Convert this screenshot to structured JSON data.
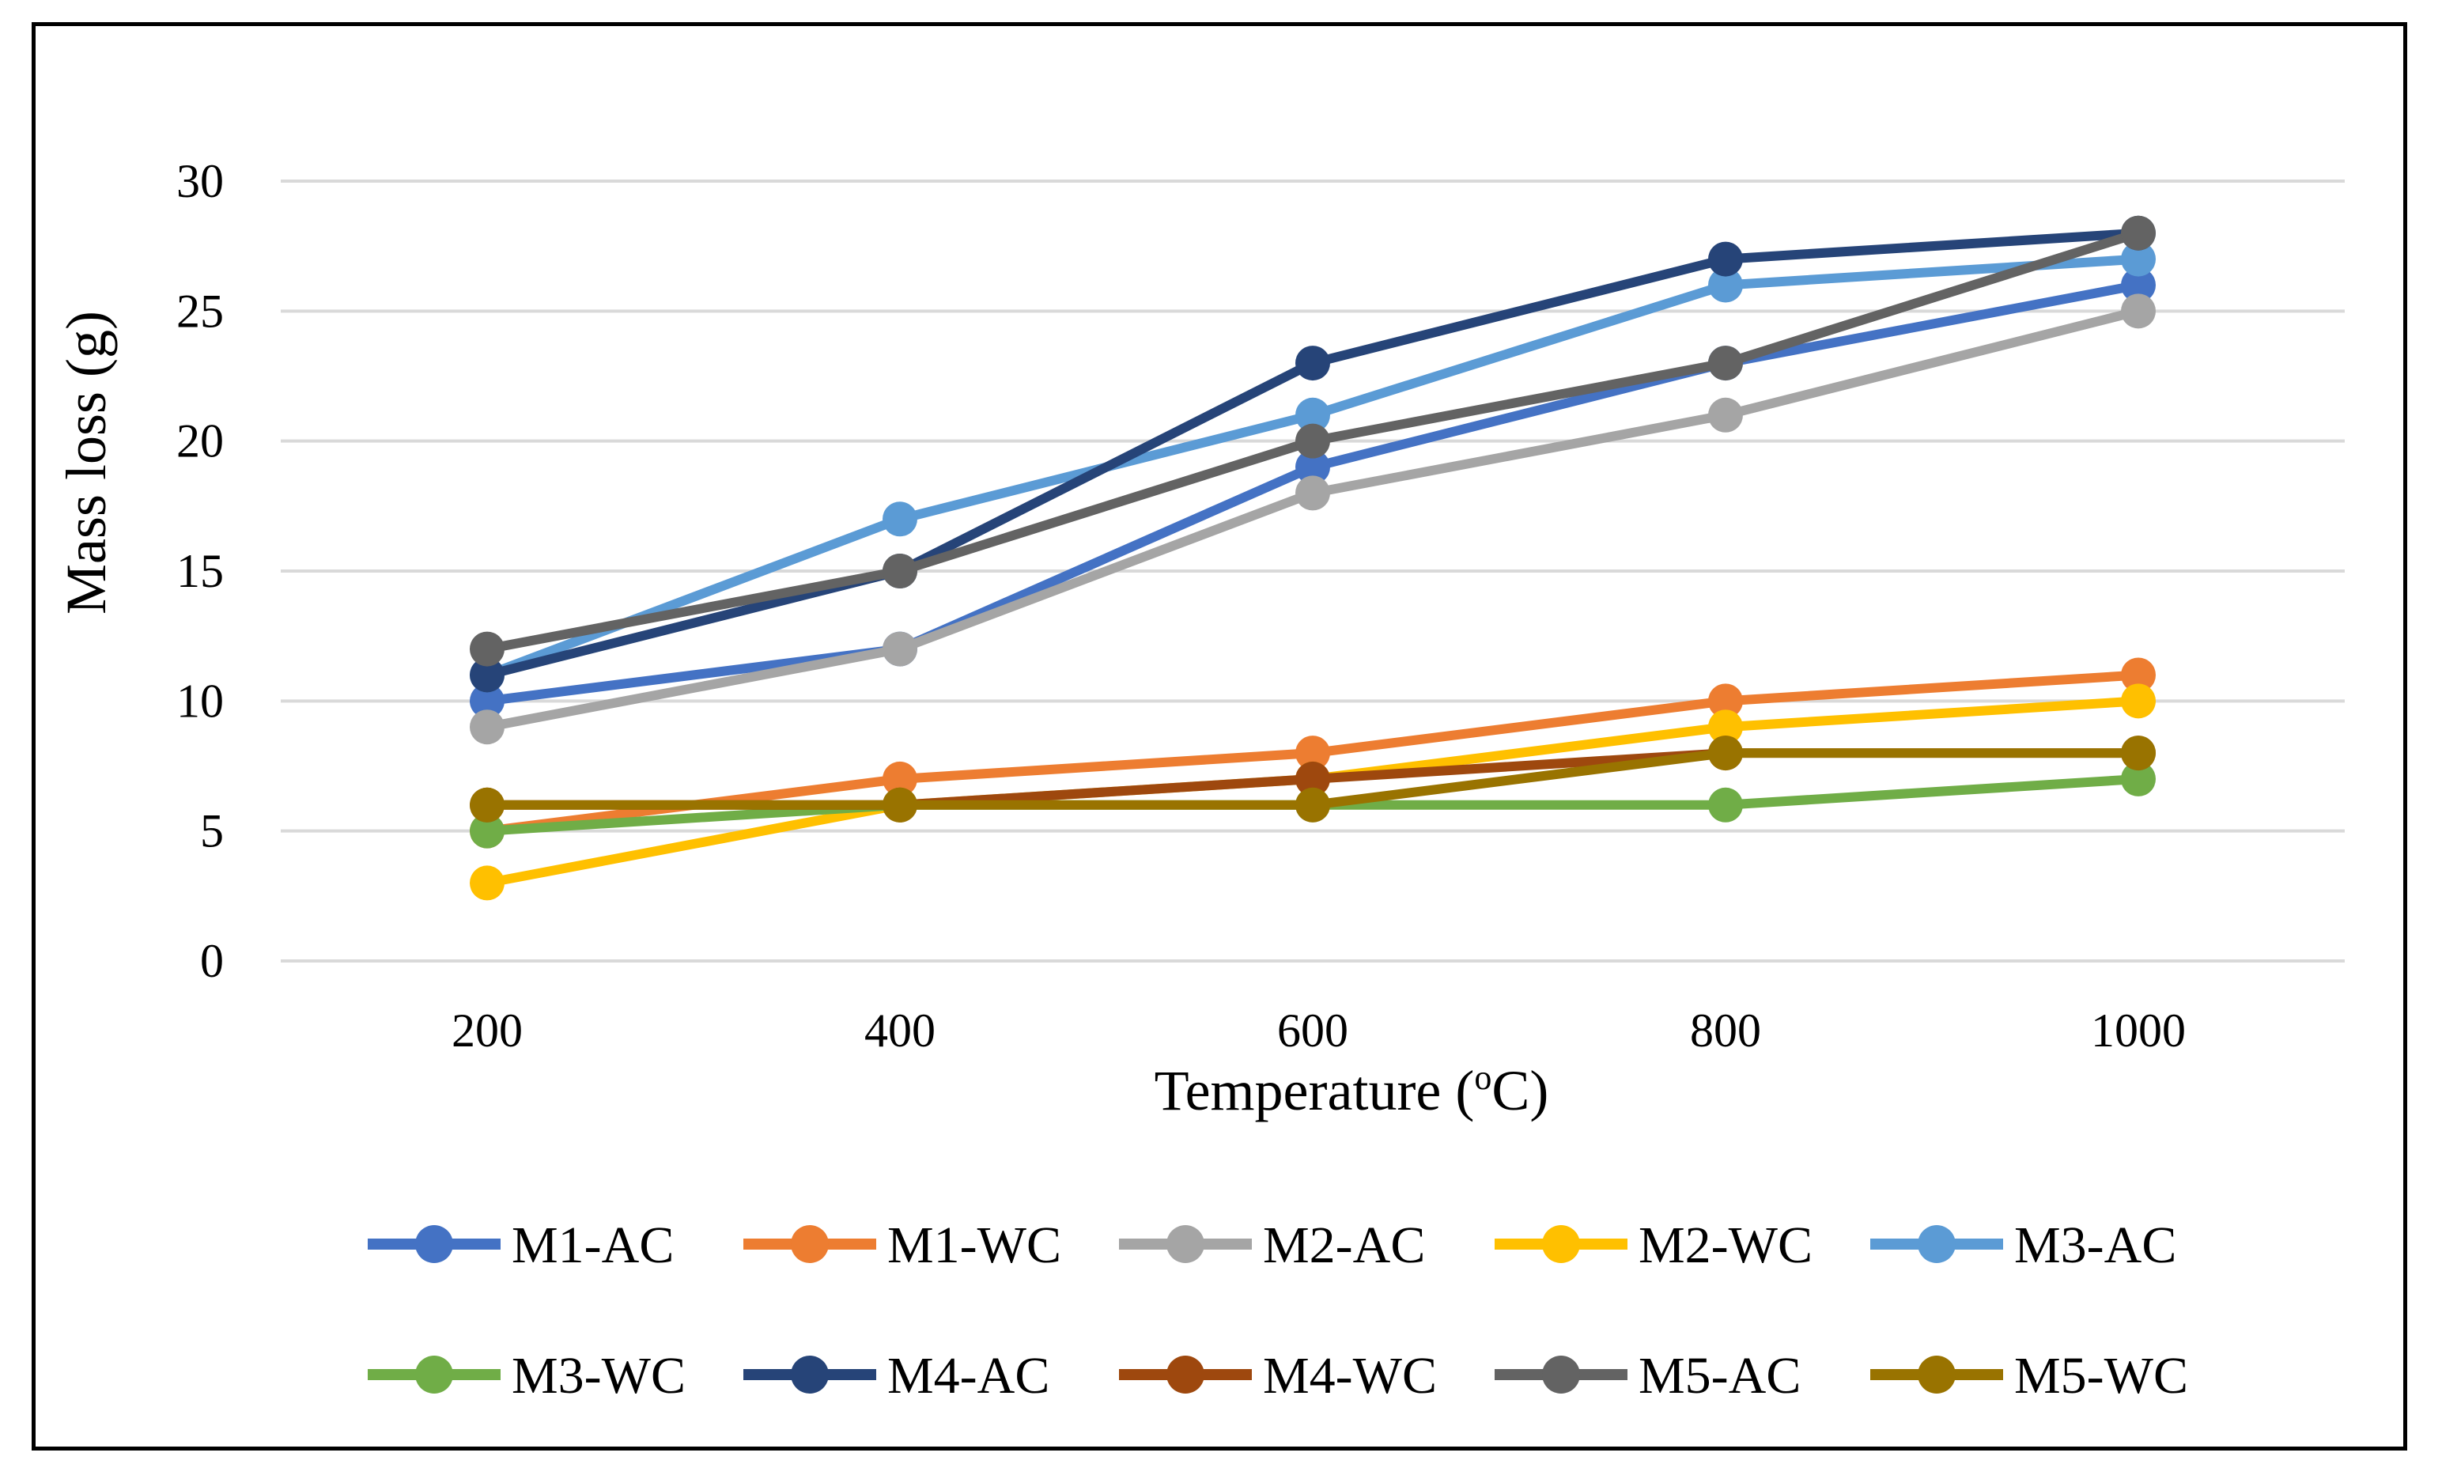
{
  "chart_data": {
    "type": "line",
    "title": "",
    "xlabel": "Temperature (",
    "xlabel_sup": "o",
    "xlabel_end": "C)",
    "ylabel": "Mass loss (g)",
    "ylim": [
      0,
      30
    ],
    "yticks": [
      "0",
      "5",
      "10",
      "15",
      "20",
      "25",
      "30"
    ],
    "grid": true,
    "legend_position": "bottom",
    "categories": [
      "200",
      "400",
      "600",
      "800",
      "1000"
    ],
    "series": [
      {
        "name": "M1-AC",
        "color": "#4472C4",
        "values": [
          10,
          12,
          19,
          23,
          26
        ]
      },
      {
        "name": "M1-WC",
        "color": "#ED7D31",
        "values": [
          5,
          7,
          8,
          10,
          11
        ]
      },
      {
        "name": "M2-AC",
        "color": "#A5A5A5",
        "values": [
          9,
          12,
          18,
          21,
          25
        ]
      },
      {
        "name": "M2-WC",
        "color": "#FFC000",
        "values": [
          3,
          6,
          7,
          9,
          10
        ]
      },
      {
        "name": "M3-AC",
        "color": "#5B9BD5",
        "values": [
          11,
          17,
          21,
          26,
          27
        ]
      },
      {
        "name": "M3-WC",
        "color": "#70AD47",
        "values": [
          5,
          6,
          6,
          6,
          7
        ]
      },
      {
        "name": "M4-AC",
        "color": "#264478",
        "values": [
          11,
          15,
          23,
          27,
          28
        ]
      },
      {
        "name": "M4-WC",
        "color": "#9E480E",
        "values": [
          6,
          6,
          7,
          8,
          8
        ]
      },
      {
        "name": "M5-AC",
        "color": "#636363",
        "values": [
          12,
          15,
          20,
          23,
          28
        ]
      },
      {
        "name": "M5-WC",
        "color": "#997300",
        "values": [
          6,
          6,
          6,
          8,
          8
        ]
      }
    ]
  }
}
